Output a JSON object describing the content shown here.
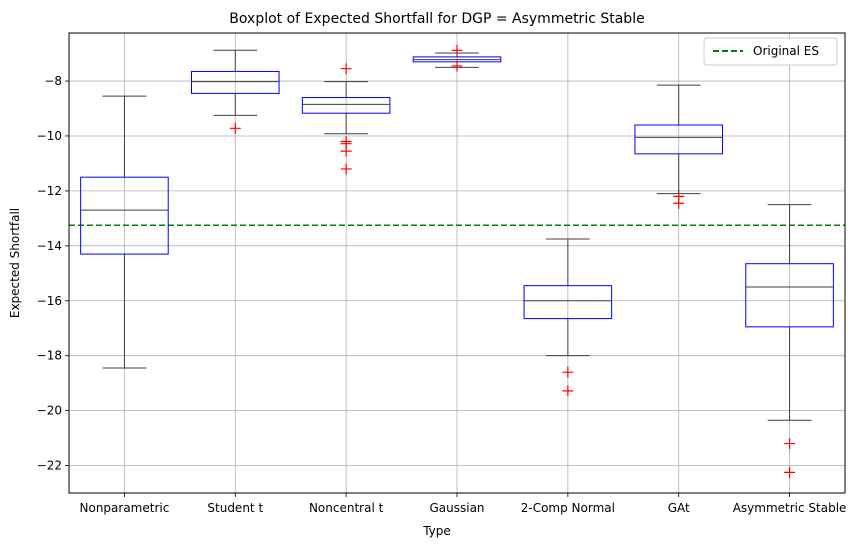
{
  "chart_data": {
    "type": "box",
    "title": "Boxplot of Expected Shortfall for DGP = Asymmetric Stable",
    "xlabel": "Type",
    "ylabel": "Expected Shortfall",
    "ylim": [
      -23.0,
      -6.25
    ],
    "yticks": [
      -8,
      -10,
      -12,
      -14,
      -16,
      -18,
      -20,
      -22
    ],
    "grid": true,
    "legend": {
      "placement": "top-right",
      "entries": [
        "Original ES"
      ]
    },
    "reference_line": {
      "name": "Original ES",
      "value": -13.25,
      "style": "dashed",
      "color": "#008000"
    },
    "colors": {
      "box": "#0000ff",
      "whisker": "#3f3f3f",
      "median": "#3f3f3f",
      "flier": "#ff0000",
      "grid": "#b0b0b0"
    },
    "categories": [
      "Nonparametric",
      "Student t",
      "Noncentral t",
      "Gaussian",
      "2-Comp Normal",
      "GAt",
      "Asymmetric Stable"
    ],
    "boxes": [
      {
        "q1": -14.3,
        "median": -12.7,
        "q3": -11.5,
        "whislo": -18.45,
        "whishi": -8.55,
        "fliers": []
      },
      {
        "q1": -8.45,
        "median": -8.02,
        "q3": -7.65,
        "whislo": -9.25,
        "whishi": -6.88,
        "fliers": [
          -9.72
        ]
      },
      {
        "q1": -9.17,
        "median": -8.85,
        "q3": -8.6,
        "whislo": -9.92,
        "whishi": -8.02,
        "fliers": [
          -7.55,
          -10.2,
          -10.28,
          -10.55,
          -11.2
        ]
      },
      {
        "q1": -7.3,
        "median": -7.22,
        "q3": -7.12,
        "whislo": -7.5,
        "whishi": -6.98,
        "fliers": [
          -6.88,
          -7.45
        ]
      },
      {
        "q1": -16.65,
        "median": -16.0,
        "q3": -15.45,
        "whislo": -18.0,
        "whishi": -13.75,
        "fliers": [
          -18.6,
          -19.28
        ]
      },
      {
        "q1": -10.65,
        "median": -10.05,
        "q3": -9.6,
        "whislo": -12.1,
        "whishi": -8.15,
        "fliers": [
          -12.2,
          -12.45
        ]
      },
      {
        "q1": -16.95,
        "median": -15.5,
        "q3": -14.65,
        "whislo": -20.35,
        "whishi": -12.5,
        "fliers": [
          -21.2,
          -22.25
        ]
      }
    ]
  }
}
